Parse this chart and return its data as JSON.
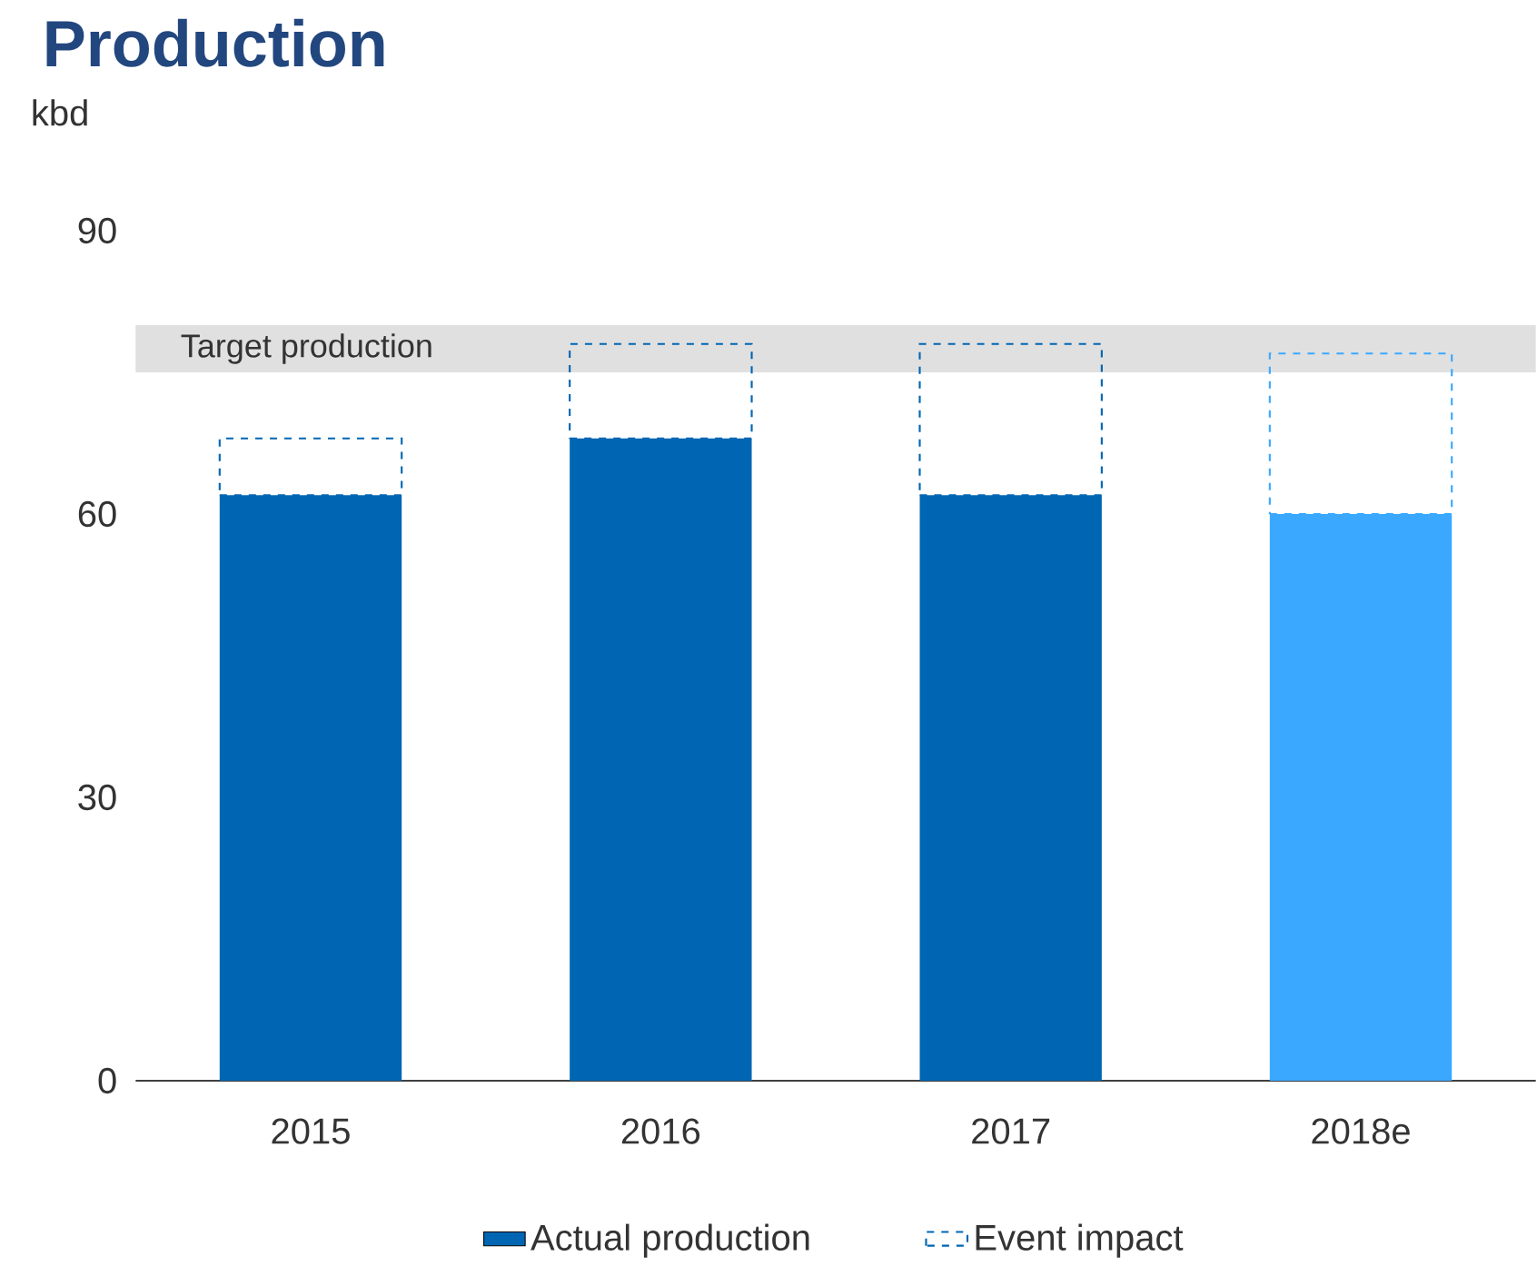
{
  "chart_data": {
    "type": "bar",
    "title": "Production",
    "ylabel": "kbd",
    "categories": [
      "2015",
      "2016",
      "2017",
      "2018e"
    ],
    "stacked": true,
    "series": [
      {
        "name": "Actual production",
        "color": "#0066b3",
        "colors": [
          "#0066b3",
          "#0066b3",
          "#0066b3",
          "#3aa8ff"
        ],
        "values": [
          62,
          68,
          62,
          60
        ]
      },
      {
        "name": "Event impact",
        "color": "#0066b3",
        "colors": [
          "#0066b3",
          "#0066b3",
          "#0066b3",
          "#3aa8ff"
        ],
        "line_style": "dashed",
        "values": [
          6,
          10,
          16,
          17
        ]
      }
    ],
    "ylim": [
      0,
      90
    ],
    "yticks": [
      0,
      30,
      60,
      90
    ],
    "bands": [
      {
        "axis": "y",
        "from": 75,
        "to": 80,
        "label": "Target production",
        "color": "#e0e0e0"
      }
    ],
    "legend": "bottom",
    "grid": false
  }
}
